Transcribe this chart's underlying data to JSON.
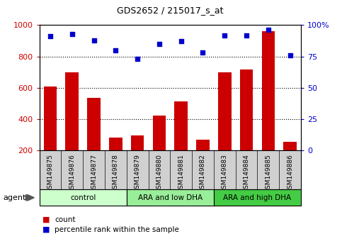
{
  "title": "GDS2652 / 215017_s_at",
  "samples": [
    "GSM149875",
    "GSM149876",
    "GSM149877",
    "GSM149878",
    "GSM149879",
    "GSM149880",
    "GSM149881",
    "GSM149882",
    "GSM149883",
    "GSM149884",
    "GSM149885",
    "GSM149886"
  ],
  "counts": [
    610,
    700,
    535,
    285,
    295,
    425,
    515,
    270,
    700,
    715,
    960,
    255
  ],
  "percentiles": [
    91,
    93,
    88,
    80,
    73,
    85,
    87,
    78,
    92,
    92,
    96,
    76
  ],
  "ylim_left": [
    200,
    1000
  ],
  "ylim_right": [
    0,
    100
  ],
  "yticks_left": [
    200,
    400,
    600,
    800,
    1000
  ],
  "yticks_right": [
    0,
    25,
    50,
    75,
    100
  ],
  "ytick_labels_right": [
    "0",
    "25",
    "50",
    "75",
    "100%"
  ],
  "groups": [
    {
      "label": "control",
      "start": 0,
      "end": 3,
      "color": "#ccffcc"
    },
    {
      "label": "ARA and low DHA",
      "start": 4,
      "end": 7,
      "color": "#99ee99"
    },
    {
      "label": "ARA and high DHA",
      "start": 8,
      "end": 11,
      "color": "#44cc44"
    }
  ],
  "bar_color": "#cc0000",
  "dot_color": "#0000cc",
  "grid_color": "#000000",
  "tick_label_color_left": "#cc0000",
  "tick_label_color_right": "#0000cc",
  "bg_color": "#ffffff",
  "plot_bg_color": "#ffffff",
  "xlabel_area_color": "#d0d0d0",
  "agent_label": "agent",
  "legend_count_label": "count",
  "legend_pct_label": "percentile rank within the sample"
}
